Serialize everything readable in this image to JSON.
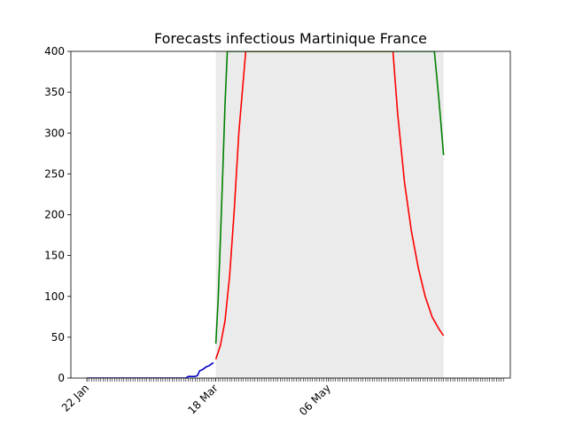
{
  "chart_data": {
    "type": "line",
    "title": "Forecasts infectious Martinique France",
    "xlabel": "",
    "ylabel": "",
    "ylim": [
      0,
      400
    ],
    "xlim": [
      "2020-01-15",
      "2020-07-24"
    ],
    "y_ticks": [
      "0",
      "50",
      "100",
      "150",
      "200",
      "250",
      "300",
      "350",
      "400"
    ],
    "x_tick_labels": [
      {
        "date": "2020-01-22",
        "label": "22 Jan"
      },
      {
        "date": "2020-03-18",
        "label": "18 Mar"
      },
      {
        "date": "2020-05-06",
        "label": "06 May"
      }
    ],
    "minor_tick_range": [
      "2020-01-22",
      "2020-07-21"
    ],
    "grid": false,
    "series": [
      {
        "role": "observed",
        "color": "#0000cc",
        "points": [
          [
            "2020-01-22",
            0
          ],
          [
            "2020-03-05",
            0
          ],
          [
            "2020-03-06",
            2
          ],
          [
            "2020-03-09",
            2
          ],
          [
            "2020-03-10",
            3
          ],
          [
            "2020-03-11",
            9
          ],
          [
            "2020-03-12",
            10
          ],
          [
            "2020-03-13",
            12
          ],
          [
            "2020-03-14",
            14
          ],
          [
            "2020-03-15",
            15
          ],
          [
            "2020-03-16",
            17
          ],
          [
            "2020-03-17",
            19
          ]
        ]
      },
      {
        "role": "forecast-central",
        "color": "#ff0000",
        "points": [
          [
            "2020-03-18",
            23
          ],
          [
            "2020-03-20",
            40
          ],
          [
            "2020-03-22",
            70
          ],
          [
            "2020-03-24",
            125
          ],
          [
            "2020-03-26",
            205
          ],
          [
            "2020-03-28",
            300
          ],
          [
            "2020-03-31",
            400
          ],
          [
            "2020-06-03",
            400
          ],
          [
            "2020-06-05",
            325
          ],
          [
            "2020-06-08",
            240
          ],
          [
            "2020-06-11",
            180
          ],
          [
            "2020-06-14",
            135
          ],
          [
            "2020-06-17",
            100
          ],
          [
            "2020-06-20",
            75
          ],
          [
            "2020-06-23",
            60
          ],
          [
            "2020-06-25",
            52
          ]
        ]
      },
      {
        "role": "forecast-upper",
        "color": "#008000",
        "points": [
          [
            "2020-03-18",
            42
          ],
          [
            "2020-03-19",
            95
          ],
          [
            "2020-03-20",
            170
          ],
          [
            "2020-03-21",
            250
          ],
          [
            "2020-03-22",
            335
          ],
          [
            "2020-03-23",
            400
          ],
          [
            "2020-06-21",
            400
          ],
          [
            "2020-06-23",
            340
          ],
          [
            "2020-06-25",
            273
          ]
        ]
      }
    ],
    "shaded_band": {
      "color": "#ebebeb",
      "x_range": [
        "2020-03-18",
        "2020-06-25"
      ],
      "y_range": [
        0,
        400
      ]
    }
  }
}
